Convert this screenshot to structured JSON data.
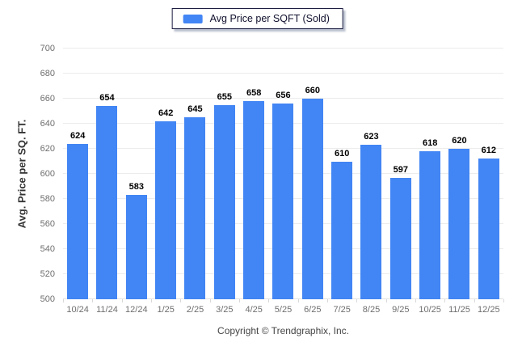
{
  "chart_data": {
    "type": "bar",
    "legend": "Avg Price per SQFT (Sold)",
    "legend_position": "top",
    "categories": [
      "10/24",
      "11/24",
      "12/24",
      "1/25",
      "2/25",
      "3/25",
      "4/25",
      "5/25",
      "6/25",
      "7/25",
      "8/25",
      "9/25",
      "10/25",
      "11/25",
      "12/25"
    ],
    "values": [
      624,
      654,
      583,
      642,
      645,
      655,
      658,
      656,
      660,
      610,
      623,
      597,
      618,
      620,
      612
    ],
    "title": "",
    "xlabel": "",
    "ylabel": "Avg. Price per SQ. FT.",
    "ylim": [
      500,
      700
    ],
    "yticks": [
      500,
      520,
      540,
      560,
      580,
      600,
      620,
      640,
      660,
      680,
      700
    ],
    "grid": true,
    "bar_color": "#4285F4",
    "grid_color": "#ececec",
    "axis_text_color": "#6e6e6e",
    "value_label_color": "#000000"
  },
  "footer": {
    "copyright": "Copyright © Trendgraphix, Inc."
  }
}
